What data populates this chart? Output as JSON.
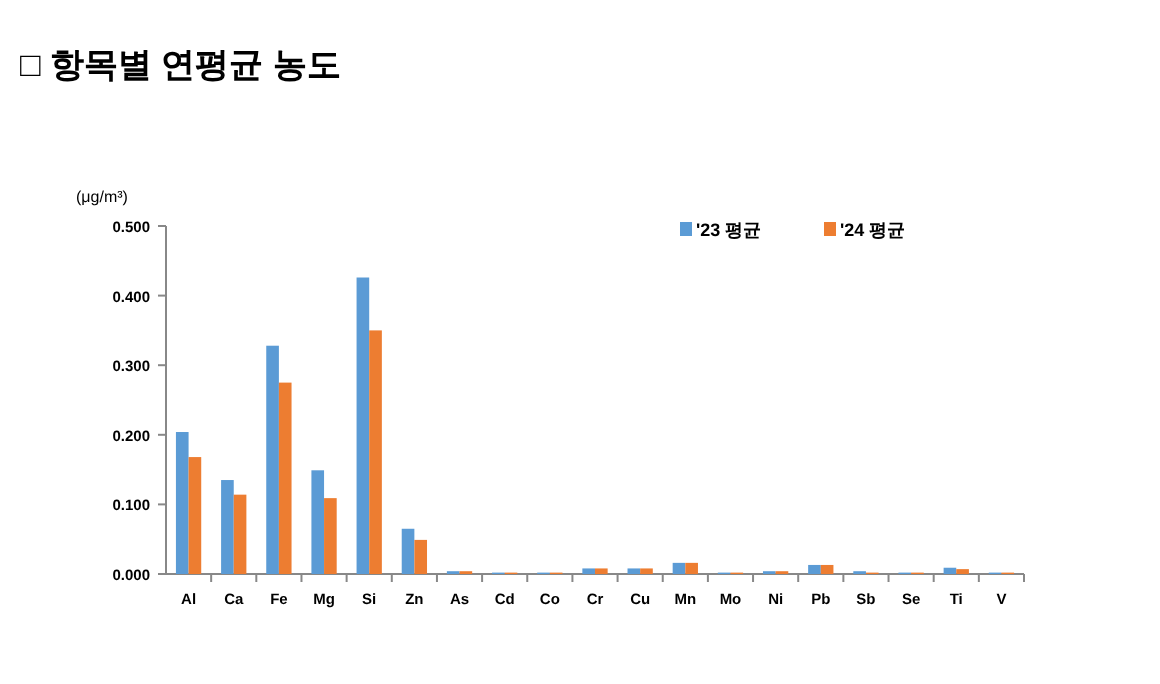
{
  "chart_data": {
    "type": "bar",
    "title": "□ 항목별 연평균 농도",
    "ylabel": "(μg/m³)",
    "categories": [
      "Al",
      "Ca",
      "Fe",
      "Mg",
      "Si",
      "Zn",
      "As",
      "Cd",
      "Co",
      "Cr",
      "Cu",
      "Mn",
      "Mo",
      "Ni",
      "Pb",
      "Sb",
      "Se",
      "Ti",
      "V"
    ],
    "series": [
      {
        "name": "'23 평균",
        "color": "#5b9bd5",
        "values": [
          0.204,
          0.135,
          0.328,
          0.149,
          0.426,
          0.065,
          0.004,
          0.002,
          0.002,
          0.008,
          0.008,
          0.016,
          0.002,
          0.004,
          0.013,
          0.004,
          0.002,
          0.009,
          0.002
        ]
      },
      {
        "name": "'24 평균",
        "color": "#ed7d31",
        "values": [
          0.168,
          0.114,
          0.275,
          0.109,
          0.35,
          0.049,
          0.004,
          0.002,
          0.002,
          0.008,
          0.008,
          0.016,
          0.002,
          0.004,
          0.013,
          0.002,
          0.002,
          0.007,
          0.002
        ]
      }
    ],
    "ylim": [
      0,
      0.5
    ],
    "yticks": [
      {
        "value": 0,
        "label": "0.000"
      },
      {
        "value": 0.1,
        "label": "0.100"
      },
      {
        "value": 0.2,
        "label": "0.200"
      },
      {
        "value": 0.3,
        "label": "0.300"
      },
      {
        "value": 0.4,
        "label": "0.400"
      },
      {
        "value": 0.5,
        "label": "0.500"
      }
    ],
    "grid": false,
    "legend": "top right"
  }
}
